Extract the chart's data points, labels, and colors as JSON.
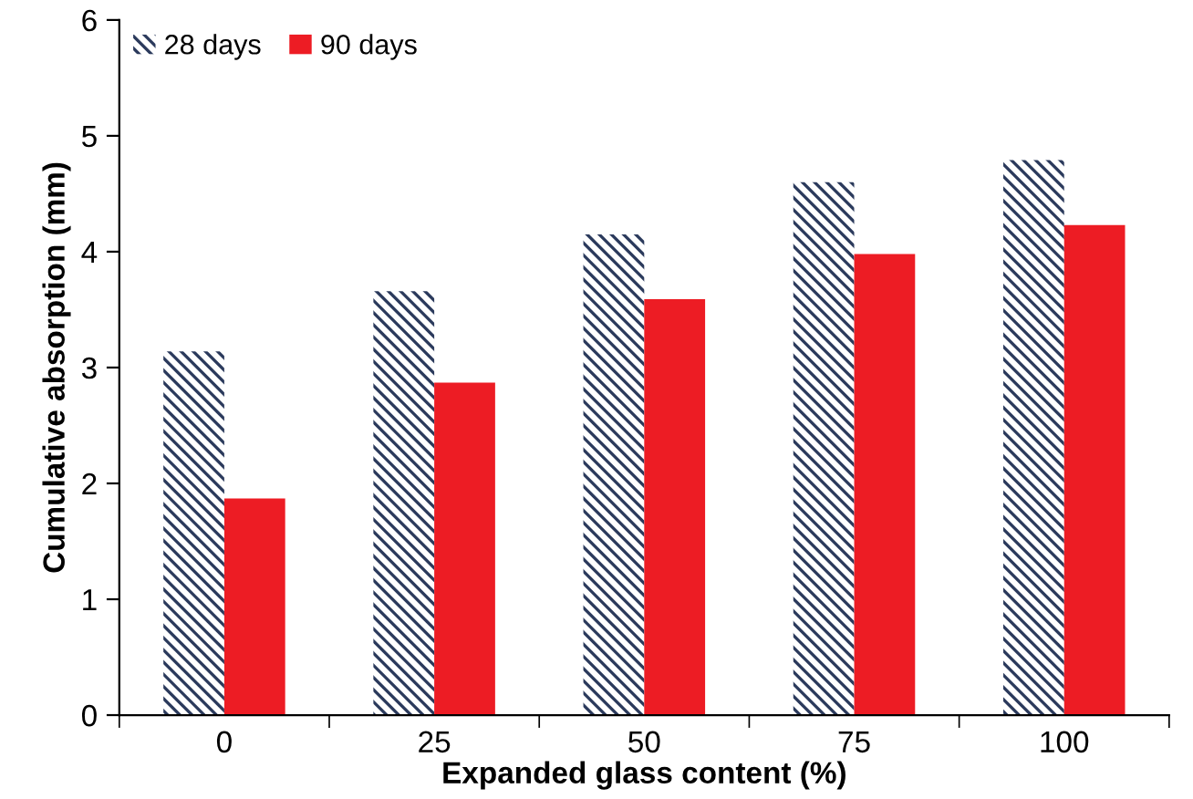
{
  "chart_data": {
    "type": "bar",
    "xlabel": "Expanded glass content (%)",
    "ylabel": "Cumulative absorption (mm)",
    "categories": [
      "0",
      "25",
      "50",
      "75",
      "100"
    ],
    "series": [
      {
        "name": "28 days",
        "color": "#2b3a5c",
        "values": [
          3.14,
          3.66,
          4.15,
          4.6,
          4.79
        ]
      },
      {
        "name": "90 days",
        "color": "#ed1c24",
        "values": [
          1.87,
          2.87,
          3.59,
          3.98,
          4.23
        ]
      }
    ],
    "ylim": [
      0,
      6
    ],
    "yticks": [
      0,
      1,
      2,
      3,
      4,
      5,
      6
    ],
    "grid": false,
    "legend": "top left"
  }
}
